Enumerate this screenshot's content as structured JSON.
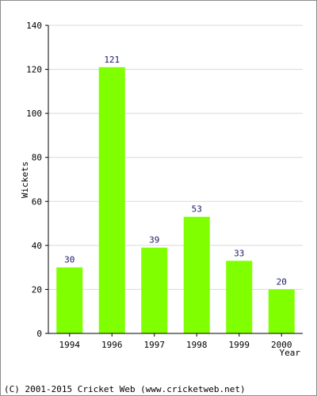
{
  "chart_data": {
    "type": "bar",
    "categories": [
      "1994",
      "1996",
      "1997",
      "1998",
      "1999",
      "2000"
    ],
    "values": [
      30,
      121,
      39,
      53,
      33,
      20
    ],
    "title": "",
    "xlabel": "Year",
    "ylabel": "Wickets",
    "ylim": [
      0,
      140
    ],
    "yticks": [
      0,
      20,
      40,
      60,
      80,
      100,
      120,
      140
    ],
    "grid": true,
    "bar_color": "#80ff00",
    "data_labels": true
  },
  "footer": {
    "text": "(C) 2001-2015 Cricket Web (www.cricketweb.net)"
  }
}
